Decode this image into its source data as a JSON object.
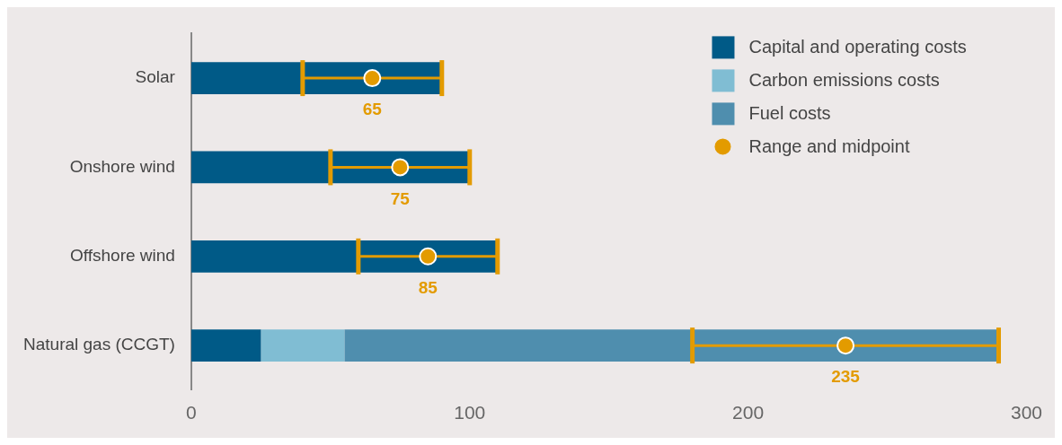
{
  "chart_data": {
    "type": "bar",
    "orientation": "horizontal",
    "stacked": true,
    "categories": [
      "Solar",
      "Onshore wind",
      "Offshore wind",
      "Natural gas (CCGT)"
    ],
    "series": [
      {
        "name": "Capital and operating costs",
        "color": "#005a87",
        "values": [
          90,
          100,
          110,
          25
        ]
      },
      {
        "name": "Carbon emissions costs",
        "color": "#80bdd3",
        "values": [
          null,
          null,
          null,
          30
        ]
      },
      {
        "name": "Fuel costs",
        "color": "#4f8eae",
        "values": [
          null,
          null,
          null,
          235
        ]
      },
      {
        "name": "Range and midpoint",
        "type": "scatter",
        "marker": "circle",
        "color": "#e39b00",
        "values": [
          65,
          75,
          85,
          235
        ],
        "errors": [
          [
            40,
            90
          ],
          [
            50,
            100
          ],
          [
            60,
            110
          ],
          [
            180,
            290
          ]
        ],
        "value_labels": [
          "65",
          "75",
          "85",
          "235"
        ]
      }
    ],
    "xlim": [
      0,
      300
    ],
    "xticks": [
      0,
      100,
      200,
      300
    ],
    "grid": false,
    "legend": "top right"
  }
}
